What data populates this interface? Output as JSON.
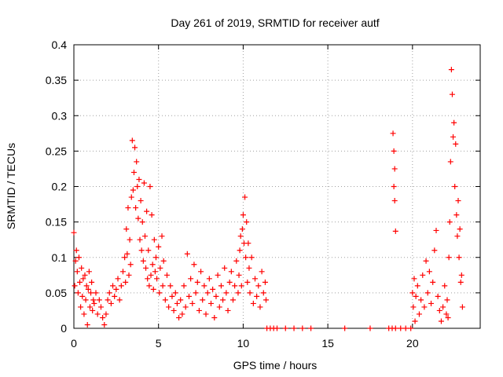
{
  "chart_data": {
    "type": "scatter",
    "title": "Day 261 of 2019, SRMTID for receiver autf",
    "xlabel": "GPS time / hours",
    "ylabel": "SRMTID / TECUs",
    "xlim": [
      0,
      24
    ],
    "ylim": [
      0,
      0.4
    ],
    "x_ticks": [
      0,
      5,
      10,
      15,
      20
    ],
    "y_ticks": [
      0,
      0.05,
      0.1,
      0.15,
      0.2,
      0.25,
      0.3,
      0.35,
      0.4
    ],
    "x_tick_labels": [
      "0",
      "5",
      "10",
      "15",
      "20"
    ],
    "y_tick_labels": [
      "0",
      "0.05",
      "0.1",
      "0.15",
      "0.2",
      "0.25",
      "0.3",
      "0.35",
      "0.4"
    ],
    "grid": true,
    "marker": "+",
    "color": "#ff0000",
    "series": [
      {
        "name": "SRMTID",
        "points": [
          [
            0.0,
            0.135
          ],
          [
            0.05,
            0.06
          ],
          [
            0.1,
            0.095
          ],
          [
            0.15,
            0.11
          ],
          [
            0.2,
            0.08
          ],
          [
            0.25,
            0.05
          ],
          [
            0.3,
            0.1
          ],
          [
            0.35,
            0.065
          ],
          [
            0.4,
            0.03
          ],
          [
            0.45,
            0.085
          ],
          [
            0.5,
            0.045
          ],
          [
            0.55,
            0.07
          ],
          [
            0.6,
            0.02
          ],
          [
            0.65,
            0.075
          ],
          [
            0.7,
            0.04
          ],
          [
            0.75,
            0.06
          ],
          [
            0.8,
            0.005
          ],
          [
            0.85,
            0.055
          ],
          [
            0.9,
            0.08
          ],
          [
            0.95,
            0.03
          ],
          [
            1.0,
            0.05
          ],
          [
            1.05,
            0.065
          ],
          [
            1.1,
            0.025
          ],
          [
            1.15,
            0.04
          ],
          [
            1.2,
            0.035
          ],
          [
            1.3,
            0.05
          ],
          [
            1.4,
            0.02
          ],
          [
            1.5,
            0.04
          ],
          [
            1.6,
            0.03
          ],
          [
            1.7,
            0.015
          ],
          [
            1.8,
            0.005
          ],
          [
            1.9,
            0.02
          ],
          [
            2.0,
            0.04
          ],
          [
            2.1,
            0.05
          ],
          [
            2.2,
            0.035
          ],
          [
            2.3,
            0.06
          ],
          [
            2.4,
            0.045
          ],
          [
            2.5,
            0.055
          ],
          [
            2.6,
            0.07
          ],
          [
            2.7,
            0.04
          ],
          [
            2.8,
            0.06
          ],
          [
            2.9,
            0.08
          ],
          [
            3.0,
            0.1
          ],
          [
            3.05,
            0.065
          ],
          [
            3.1,
            0.14
          ],
          [
            3.15,
            0.105
          ],
          [
            3.2,
            0.17
          ],
          [
            3.25,
            0.075
          ],
          [
            3.3,
            0.125
          ],
          [
            3.35,
            0.09
          ],
          [
            3.4,
            0.185
          ],
          [
            3.45,
            0.265
          ],
          [
            3.5,
            0.195
          ],
          [
            3.55,
            0.22
          ],
          [
            3.6,
            0.255
          ],
          [
            3.65,
            0.17
          ],
          [
            3.7,
            0.235
          ],
          [
            3.75,
            0.2
          ],
          [
            3.8,
            0.155
          ],
          [
            3.85,
            0.21
          ],
          [
            3.9,
            0.125
          ],
          [
            3.95,
            0.18
          ],
          [
            4.0,
            0.11
          ],
          [
            4.05,
            0.15
          ],
          [
            4.1,
            0.095
          ],
          [
            4.15,
            0.205
          ],
          [
            4.2,
            0.13
          ],
          [
            4.25,
            0.085
          ],
          [
            4.3,
            0.165
          ],
          [
            4.35,
            0.07
          ],
          [
            4.4,
            0.11
          ],
          [
            4.45,
            0.06
          ],
          [
            4.5,
            0.2
          ],
          [
            4.55,
            0.075
          ],
          [
            4.6,
            0.16
          ],
          [
            4.65,
            0.09
          ],
          [
            4.7,
            0.055
          ],
          [
            4.75,
            0.125
          ],
          [
            4.8,
            0.08
          ],
          [
            4.85,
            0.1
          ],
          [
            4.9,
            0.07
          ],
          [
            5.0,
            0.115
          ],
          [
            5.05,
            0.05
          ],
          [
            5.1,
            0.085
          ],
          [
            5.2,
            0.13
          ],
          [
            5.25,
            0.06
          ],
          [
            5.3,
            0.095
          ],
          [
            5.4,
            0.04
          ],
          [
            5.5,
            0.075
          ],
          [
            5.6,
            0.03
          ],
          [
            5.7,
            0.06
          ],
          [
            5.8,
            0.045
          ],
          [
            5.9,
            0.025
          ],
          [
            6.0,
            0.05
          ],
          [
            6.1,
            0.035
          ],
          [
            6.2,
            0.015
          ],
          [
            6.3,
            0.04
          ],
          [
            6.4,
            0.02
          ],
          [
            6.5,
            0.06
          ],
          [
            6.6,
            0.03
          ],
          [
            6.7,
            0.105
          ],
          [
            6.8,
            0.045
          ],
          [
            6.9,
            0.07
          ],
          [
            7.0,
            0.035
          ],
          [
            7.1,
            0.09
          ],
          [
            7.2,
            0.05
          ],
          [
            7.3,
            0.065
          ],
          [
            7.4,
            0.025
          ],
          [
            7.5,
            0.08
          ],
          [
            7.6,
            0.04
          ],
          [
            7.7,
            0.06
          ],
          [
            7.8,
            0.02
          ],
          [
            7.9,
            0.05
          ],
          [
            8.0,
            0.07
          ],
          [
            8.1,
            0.035
          ],
          [
            8.2,
            0.055
          ],
          [
            8.3,
            0.015
          ],
          [
            8.4,
            0.045
          ],
          [
            8.5,
            0.075
          ],
          [
            8.6,
            0.03
          ],
          [
            8.7,
            0.06
          ],
          [
            8.8,
            0.04
          ],
          [
            8.9,
            0.085
          ],
          [
            9.0,
            0.05
          ],
          [
            9.1,
            0.025
          ],
          [
            9.2,
            0.065
          ],
          [
            9.3,
            0.08
          ],
          [
            9.4,
            0.04
          ],
          [
            9.5,
            0.06
          ],
          [
            9.6,
            0.095
          ],
          [
            9.7,
            0.05
          ],
          [
            9.75,
            0.075
          ],
          [
            9.8,
            0.11
          ],
          [
            9.85,
            0.13
          ],
          [
            9.9,
            0.06
          ],
          [
            9.95,
            0.14
          ],
          [
            10.0,
            0.16
          ],
          [
            10.05,
            0.12
          ],
          [
            10.1,
            0.185
          ],
          [
            10.15,
            0.1
          ],
          [
            10.2,
            0.15
          ],
          [
            10.25,
            0.065
          ],
          [
            10.3,
            0.12
          ],
          [
            10.35,
            0.085
          ],
          [
            10.4,
            0.05
          ],
          [
            10.5,
            0.1
          ],
          [
            10.6,
            0.035
          ],
          [
            10.7,
            0.07
          ],
          [
            10.8,
            0.045
          ],
          [
            10.9,
            0.06
          ],
          [
            11.0,
            0.03
          ],
          [
            11.1,
            0.08
          ],
          [
            11.2,
            0.05
          ],
          [
            11.3,
            0.065
          ],
          [
            11.35,
            0.04
          ],
          [
            11.4,
            0.0
          ],
          [
            11.6,
            0.0
          ],
          [
            11.8,
            0.0
          ],
          [
            12.0,
            0.0
          ],
          [
            12.5,
            0.0
          ],
          [
            13.0,
            0.0
          ],
          [
            13.5,
            0.0
          ],
          [
            14.0,
            0.0
          ],
          [
            16.0,
            0.0
          ],
          [
            17.5,
            0.0
          ],
          [
            18.6,
            0.0
          ],
          [
            18.8,
            0.0
          ],
          [
            18.85,
            0.275
          ],
          [
            18.9,
            0.25
          ],
          [
            18.9,
            0.2
          ],
          [
            18.95,
            0.225
          ],
          [
            18.95,
            0.18
          ],
          [
            19.0,
            0.137
          ],
          [
            19.0,
            0.0
          ],
          [
            19.3,
            0.0
          ],
          [
            19.6,
            0.0
          ],
          [
            19.9,
            0.0
          ],
          [
            20.0,
            0.05
          ],
          [
            20.05,
            0.03
          ],
          [
            20.1,
            0.07
          ],
          [
            20.15,
            0.01
          ],
          [
            20.2,
            0.045
          ],
          [
            20.3,
            0.06
          ],
          [
            20.4,
            0.02
          ],
          [
            20.5,
            0.04
          ],
          [
            20.6,
            0.075
          ],
          [
            20.7,
            0.03
          ],
          [
            20.8,
            0.095
          ],
          [
            20.9,
            0.05
          ],
          [
            21.0,
            0.08
          ],
          [
            21.1,
            0.035
          ],
          [
            21.2,
            0.065
          ],
          [
            21.3,
            0.11
          ],
          [
            21.4,
            0.138
          ],
          [
            21.5,
            0.045
          ],
          [
            21.6,
            0.025
          ],
          [
            21.7,
            0.01
          ],
          [
            21.8,
            0.03
          ],
          [
            21.9,
            0.06
          ],
          [
            22.0,
            0.02
          ],
          [
            22.05,
            0.04
          ],
          [
            22.1,
            0.015
          ],
          [
            22.15,
            0.1
          ],
          [
            22.2,
            0.15
          ],
          [
            22.25,
            0.235
          ],
          [
            22.3,
            0.365
          ],
          [
            22.35,
            0.33
          ],
          [
            22.4,
            0.27
          ],
          [
            22.45,
            0.29
          ],
          [
            22.5,
            0.2
          ],
          [
            22.55,
            0.26
          ],
          [
            22.6,
            0.16
          ],
          [
            22.65,
            0.13
          ],
          [
            22.7,
            0.18
          ],
          [
            22.75,
            0.1
          ],
          [
            22.8,
            0.14
          ],
          [
            22.85,
            0.065
          ],
          [
            22.9,
            0.075
          ],
          [
            22.95,
            0.03
          ]
        ]
      }
    ]
  }
}
